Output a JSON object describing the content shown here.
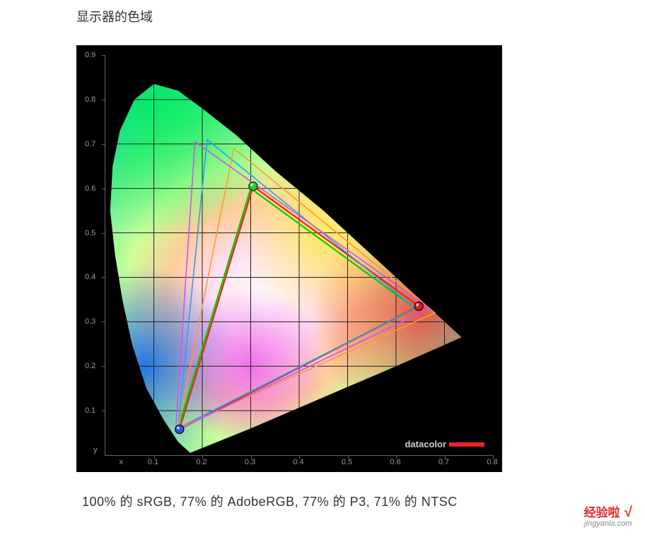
{
  "title": "显示器的色域",
  "caption": "100% 的 sRGB, 77% 的 AdobeRGB, 77% 的 P3, 71% 的 NTSC",
  "watermark": {
    "main": "经验啦",
    "check": "√",
    "sub": "jingyanla.com"
  },
  "logo": "datacolor",
  "chart": {
    "type": "chromaticity-diagram",
    "background_color": "#000000",
    "axis_color": "#666666",
    "label_color": "#999999",
    "grid_color": "#222222",
    "label_fontsize": 11,
    "xlim": [
      0,
      0.8
    ],
    "ylim": [
      0,
      0.9
    ],
    "x_label": "x",
    "y_label": "y",
    "x_ticks": [
      0.1,
      0.2,
      0.3,
      0.4,
      0.5,
      0.6,
      0.7,
      0.8
    ],
    "y_ticks": [
      0.1,
      0.2,
      0.3,
      0.4,
      0.5,
      0.6,
      0.7,
      0.8,
      0.9
    ],
    "locus": [
      [
        0.175,
        0.005
      ],
      [
        0.15,
        0.03
      ],
      [
        0.12,
        0.08
      ],
      [
        0.085,
        0.15
      ],
      [
        0.055,
        0.25
      ],
      [
        0.035,
        0.35
      ],
      [
        0.02,
        0.45
      ],
      [
        0.01,
        0.55
      ],
      [
        0.015,
        0.65
      ],
      [
        0.03,
        0.73
      ],
      [
        0.06,
        0.8
      ],
      [
        0.1,
        0.835
      ],
      [
        0.15,
        0.82
      ],
      [
        0.2,
        0.78
      ],
      [
        0.27,
        0.72
      ],
      [
        0.35,
        0.64
      ],
      [
        0.45,
        0.55
      ],
      [
        0.55,
        0.45
      ],
      [
        0.64,
        0.36
      ],
      [
        0.7,
        0.3
      ],
      [
        0.735,
        0.265
      ],
      [
        0.6,
        0.2
      ],
      [
        0.45,
        0.13
      ],
      [
        0.3,
        0.06
      ],
      [
        0.175,
        0.005
      ]
    ],
    "gamuts": [
      {
        "name": "sRGB",
        "color": "#00cc00",
        "stroke_width": 2.2,
        "points": [
          [
            0.64,
            0.33
          ],
          [
            0.3,
            0.6
          ],
          [
            0.15,
            0.06
          ]
        ]
      },
      {
        "name": "Measured",
        "color": "#ee2222",
        "stroke_width": 2.2,
        "points": [
          [
            0.647,
            0.335
          ],
          [
            0.305,
            0.605
          ],
          [
            0.153,
            0.058
          ]
        ]
      },
      {
        "name": "AdobeRGB",
        "color": "#3399ff",
        "stroke_width": 1.6,
        "points": [
          [
            0.64,
            0.33
          ],
          [
            0.21,
            0.71
          ],
          [
            0.15,
            0.06
          ]
        ]
      },
      {
        "name": "DCI-P3",
        "color": "#ff9933",
        "stroke_width": 1.6,
        "points": [
          [
            0.68,
            0.32
          ],
          [
            0.265,
            0.69
          ],
          [
            0.15,
            0.06
          ]
        ]
      },
      {
        "name": "NTSC",
        "color": "#cc55ee",
        "stroke_width": 1.6,
        "points": [
          [
            0.67,
            0.33
          ],
          [
            0.185,
            0.705
          ],
          [
            0.145,
            0.055
          ]
        ]
      }
    ],
    "markers": [
      {
        "name": "red-primary",
        "xy": [
          0.647,
          0.335
        ],
        "fill": "#cc2222",
        "stroke": "#550000",
        "r": 6
      },
      {
        "name": "green-primary",
        "xy": [
          0.305,
          0.605
        ],
        "fill": "#33cc33",
        "stroke": "#114411",
        "r": 6
      },
      {
        "name": "blue-primary",
        "xy": [
          0.153,
          0.058
        ],
        "fill": "#3355ee",
        "stroke": "#111166",
        "r": 6
      }
    ]
  }
}
